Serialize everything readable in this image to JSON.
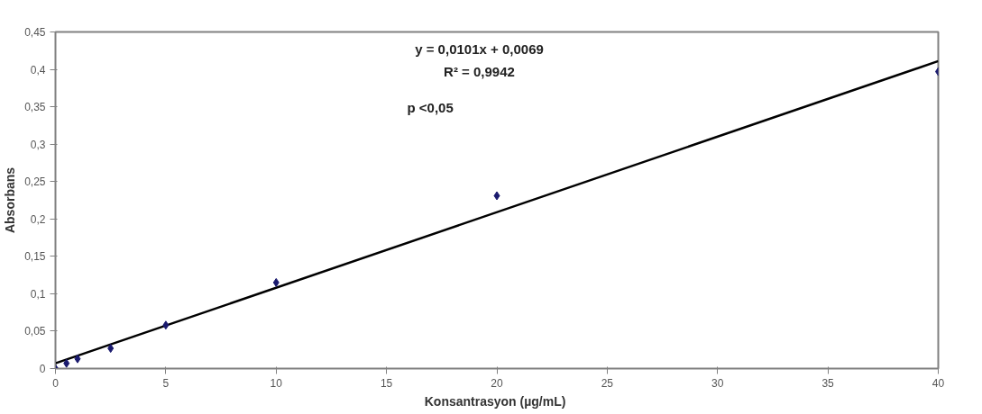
{
  "chart_data": {
    "type": "scatter",
    "xlabel": "Konsantrasyon  (µg/mL)",
    "ylabel": "Absorbans",
    "annotations": [
      "y = 0,0101x + 0,0069",
      "R² = 0,9942",
      "p <0,05"
    ],
    "x": [
      0,
      0.5,
      1,
      2.5,
      5,
      10,
      20,
      40
    ],
    "series": [
      {
        "color": "#1a1a6e",
        "marker": "diamond",
        "values": [
          0,
          0.007,
          0.013,
          0.027,
          0.058,
          0.115,
          0.231,
          0.397
        ]
      },
      {
        "type": "line",
        "color": "#000000",
        "x": [
          0,
          40
        ],
        "values": [
          0.007,
          0.411
        ],
        "line_style": "solid"
      }
    ],
    "xlim": [
      0,
      40
    ],
    "xticks": [
      0,
      5,
      10,
      15,
      20,
      25,
      30,
      35,
      40
    ],
    "ylim": [
      0,
      0.45
    ],
    "yticks": [
      {
        "value": 0,
        "label": "0"
      },
      {
        "value": 0.05,
        "label": "0,05"
      },
      {
        "value": 0.1,
        "label": "0,1"
      },
      {
        "value": 0.15,
        "label": "0,15"
      },
      {
        "value": 0.2,
        "label": "0,2"
      },
      {
        "value": 0.25,
        "label": "0,25"
      },
      {
        "value": 0.3,
        "label": "0,3"
      },
      {
        "value": 0.35,
        "label": "0,35"
      },
      {
        "value": 0.4,
        "label": "0,4"
      },
      {
        "value": 0.45,
        "label": "0,45"
      }
    ],
    "grid": false
  }
}
